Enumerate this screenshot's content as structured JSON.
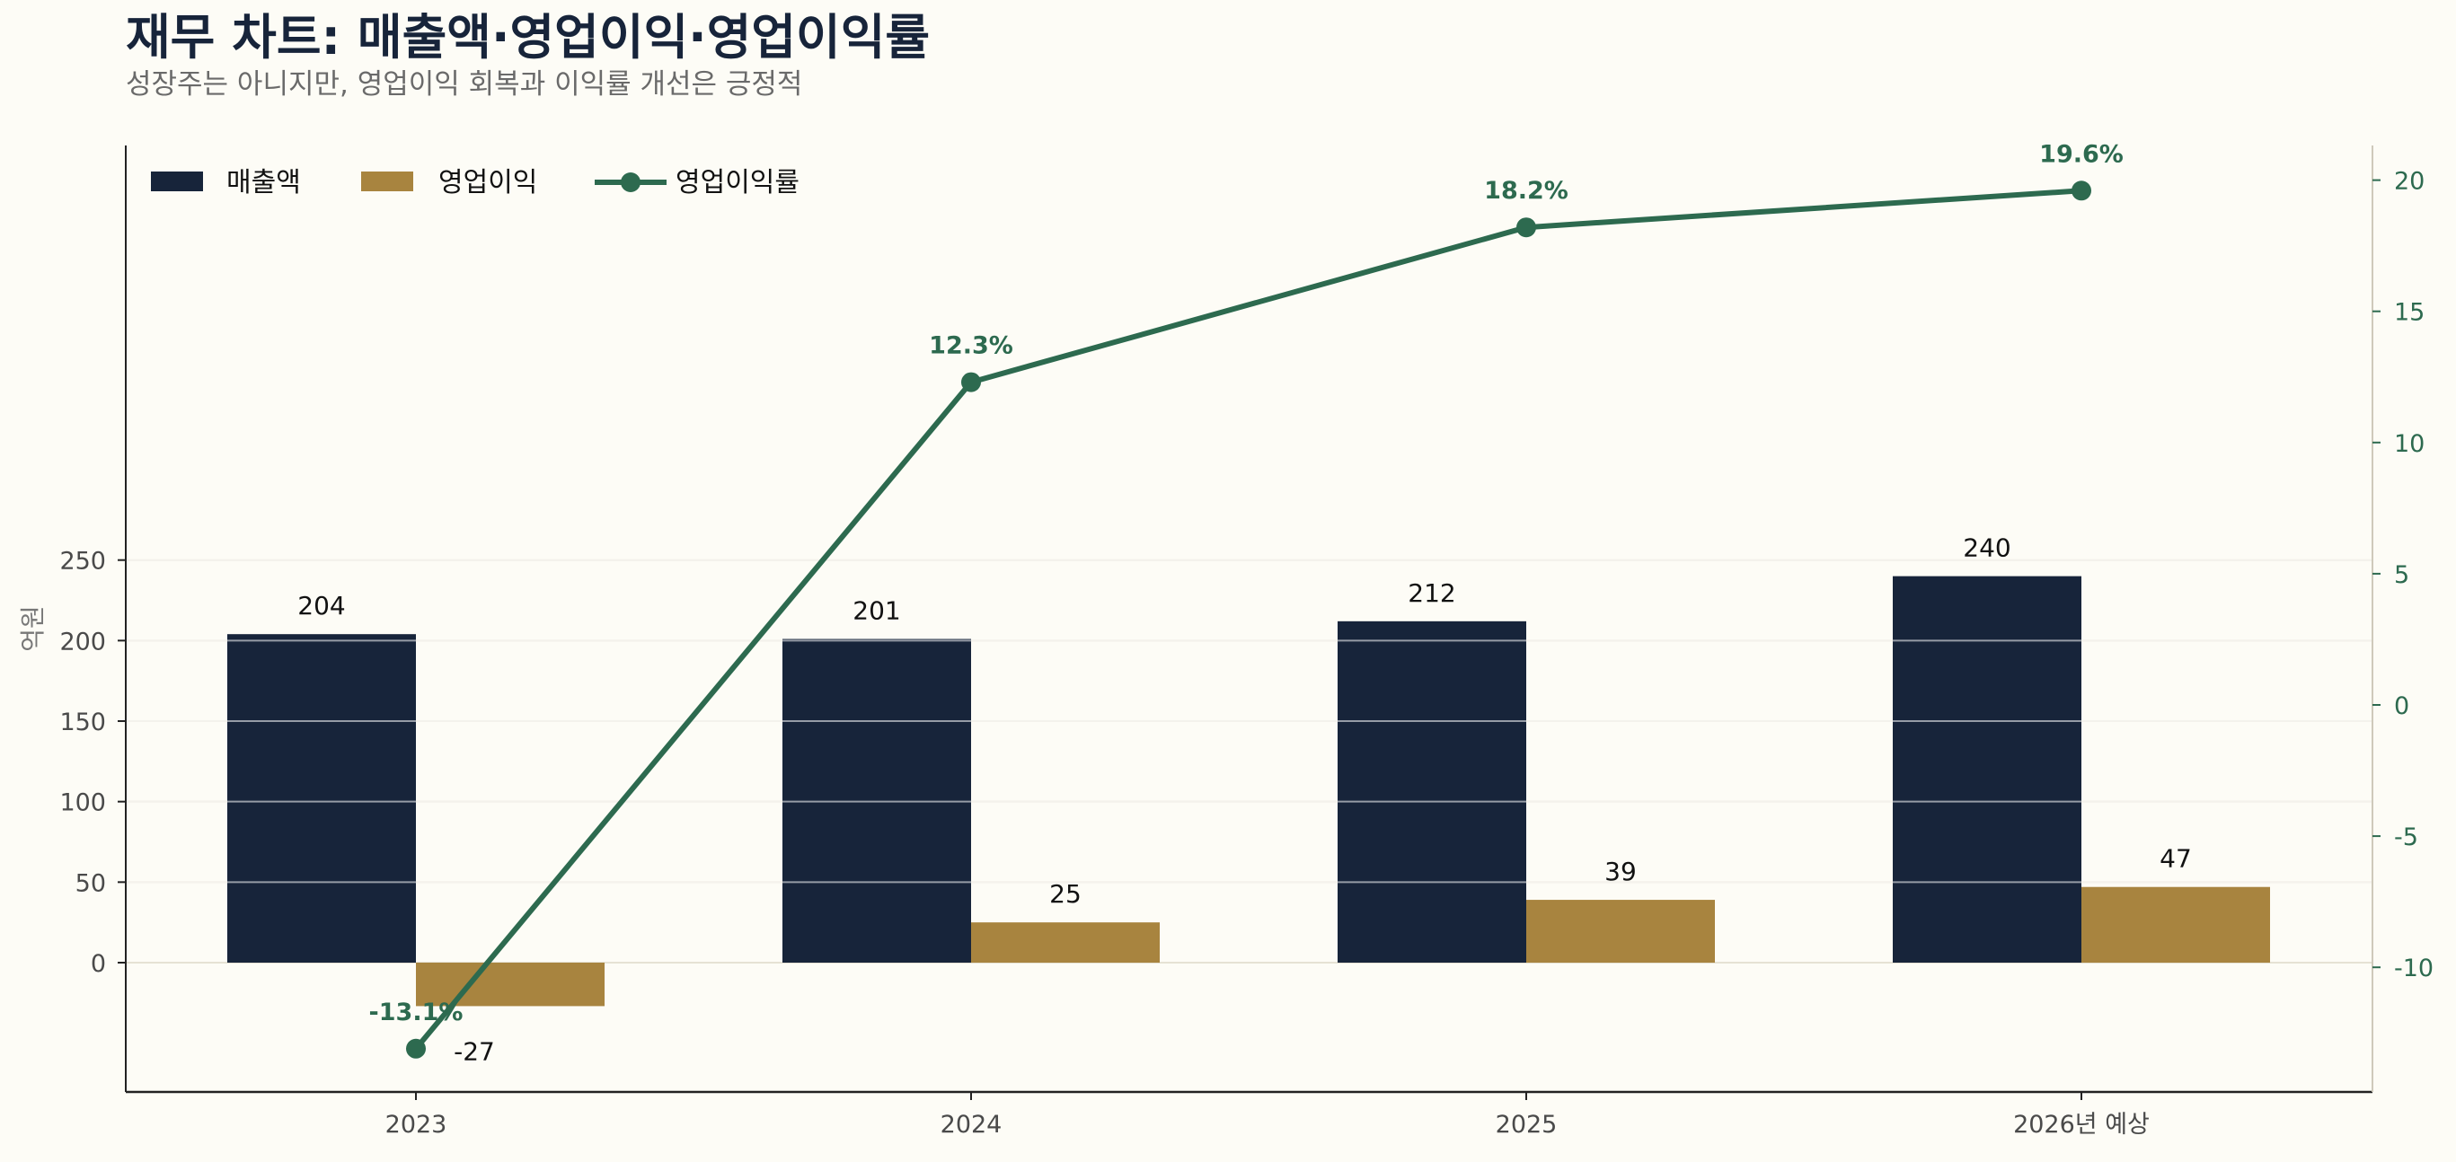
{
  "title": "재무 차트: 매출액·영업이익·영업이익률",
  "subtitle": "성장주는 아니지만, 영업이익 회복과 이익률 개선은 긍정적",
  "colors": {
    "revenue": "#17243a",
    "operating_profit": "#a8843f",
    "margin": "#2d6a4f",
    "grid": "#e6e2d4",
    "axis": "#222222",
    "background": "#fdfcf6"
  },
  "chart_data": {
    "type": "bar",
    "categories": [
      "2023",
      "2024",
      "2025",
      "2026년 예상"
    ],
    "series": [
      {
        "name": "매출액",
        "kind": "bar",
        "axis": "left",
        "values": [
          204,
          201,
          212,
          240
        ],
        "labels": [
          "204",
          "201",
          "212",
          "240"
        ]
      },
      {
        "name": "영업이익",
        "kind": "bar",
        "axis": "left",
        "values": [
          -27,
          25,
          39,
          47
        ],
        "labels": [
          "-27",
          "25",
          "39",
          "47"
        ]
      },
      {
        "name": "영업이익률",
        "kind": "line",
        "axis": "right",
        "values": [
          -13.1,
          12.3,
          18.2,
          19.6
        ],
        "labels": [
          "-13.1%",
          "12.3%",
          "18.2%",
          "19.6%"
        ]
      }
    ],
    "ylabel": "억원",
    "ylim": [
      -40,
      252
    ],
    "yticks": [
      0,
      50,
      100,
      150,
      200,
      250
    ],
    "y2lim": [
      -15,
      21
    ],
    "y2ticks": [
      -10,
      -5,
      0,
      5,
      10,
      15,
      20
    ],
    "grid": true,
    "legend": "top-left"
  }
}
